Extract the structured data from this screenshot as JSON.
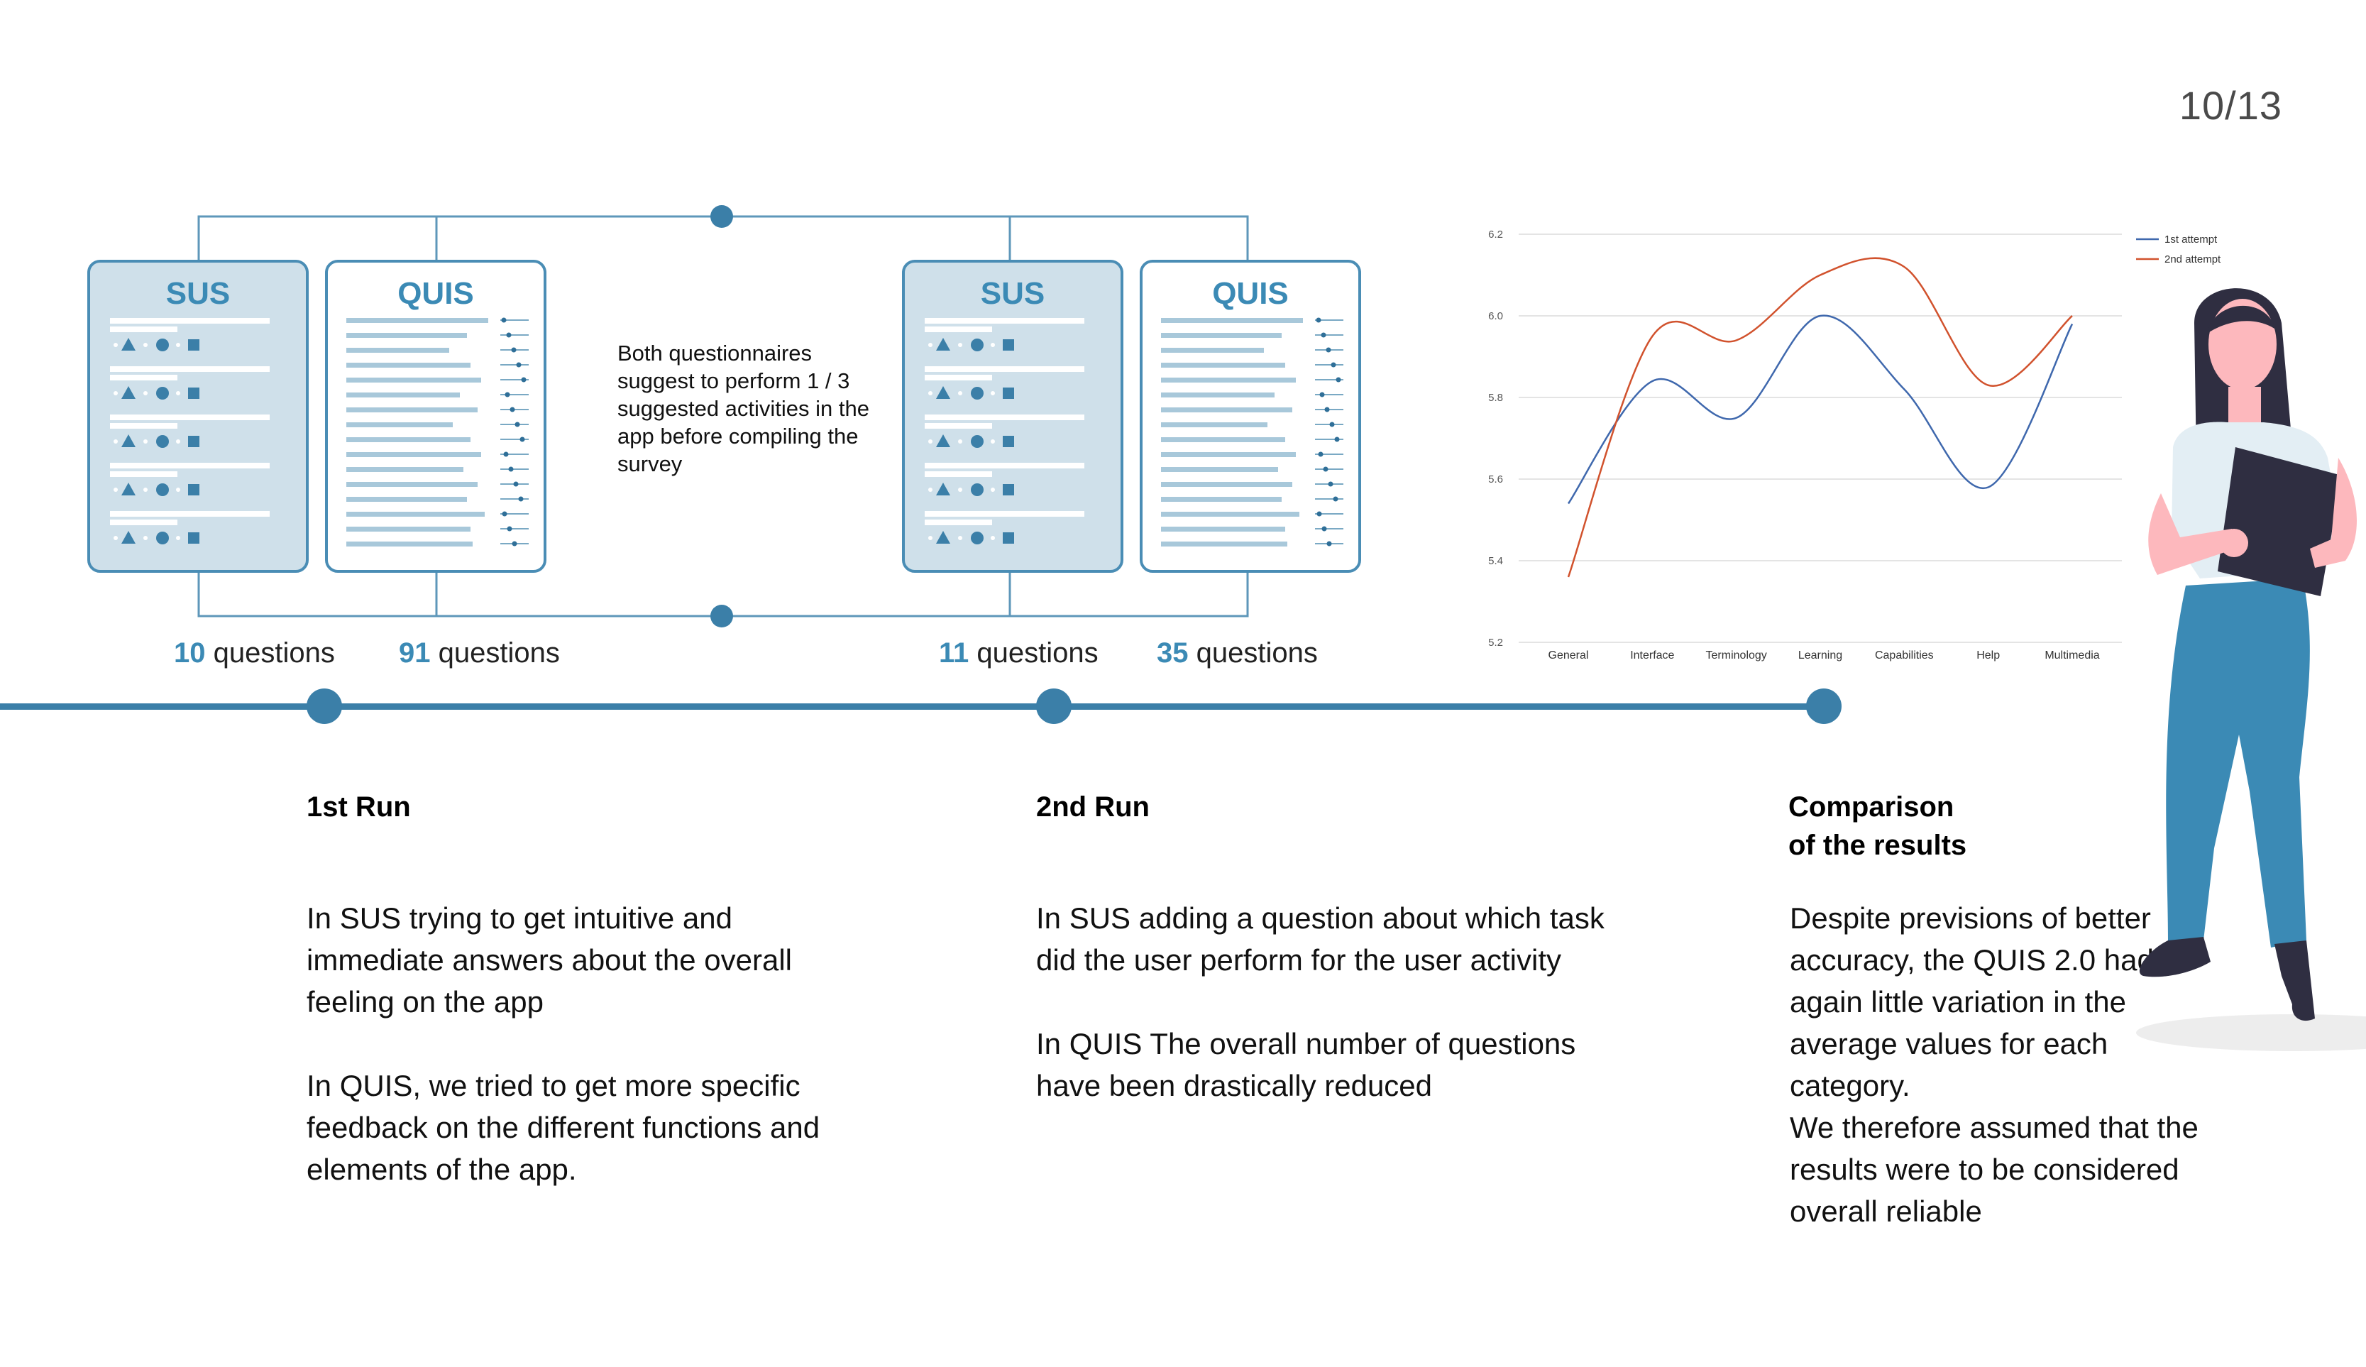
{
  "page": {
    "number": "10/13"
  },
  "colors": {
    "accent": "#3b7fa8",
    "card_fill": "#cfe0ea",
    "card_stroke": "#4a8db5",
    "series1": "#3f68ad",
    "series2": "#d1522d"
  },
  "questionnaires": [
    {
      "title": "SUS",
      "count": "10",
      "label": "questions"
    },
    {
      "title": "QUIS",
      "count": "91",
      "label": "questions"
    },
    {
      "title": "SUS",
      "count": "11",
      "label": "questions"
    },
    {
      "title": "QUIS",
      "count": "35",
      "label": "questions"
    }
  ],
  "note": "Both questionnaires suggest to perform 1 / 3 suggested activities in the app before compiling the survey",
  "columns": [
    {
      "title": "1st Run",
      "paragraphs": [
        "In SUS trying to get intuitive and immediate answers about the overall feeling on the app",
        "In QUIS, we tried to get more specific feedback on the different functions and elements of the app."
      ]
    },
    {
      "title": "2nd Run",
      "paragraphs": [
        "In SUS adding a question about which task did the user perform for the user activity",
        "In QUIS The overall number of questions have been drastically reduced"
      ]
    },
    {
      "title_line1": "Comparison",
      "title_line2": "of the results",
      "paragraphs": [
        "Despite previsions of better accuracy, the QUIS 2.0 had again little variation in the average values for each category.",
        "We therefore assumed that the results were to be considered overall reliable"
      ]
    }
  ],
  "chart_data": {
    "type": "line",
    "categories": [
      "General",
      "Interface",
      "Terminology",
      "Learning",
      "Capabilities",
      "Help",
      "Multimedia"
    ],
    "series": [
      {
        "name": "1st attempt",
        "values": [
          5.54,
          5.84,
          5.75,
          6.0,
          5.82,
          5.58,
          5.98
        ]
      },
      {
        "name": "2nd attempt",
        "values": [
          5.36,
          5.95,
          5.94,
          6.1,
          6.12,
          5.83,
          6.0
        ]
      }
    ],
    "yticks": [
      "6.2",
      "6.0",
      "5.8",
      "5.6",
      "5.4",
      "5.2"
    ],
    "ylim": [
      5.2,
      6.2
    ],
    "grid": true,
    "legend_position": "top-right"
  }
}
